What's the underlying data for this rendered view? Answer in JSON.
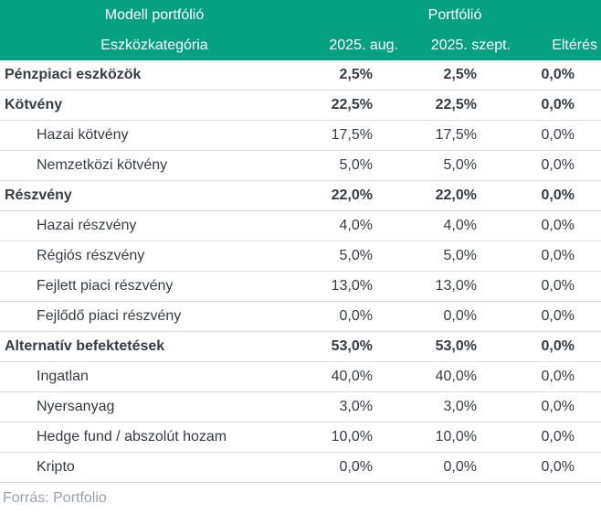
{
  "accent_color": "#06a181",
  "text_color": "#353c44",
  "divider_color": "#d9dbdd",
  "table": {
    "header": {
      "group_left": "Modell portfólió",
      "group_right": "Portfólió"
    },
    "columns": [
      "Eszközkategória",
      "2025. aug.",
      "2025. szept.",
      "Eltérés"
    ],
    "rows": [
      {
        "label": "Pénzpiaci eszközök",
        "aug": "2,5%",
        "sept": "2,5%",
        "diff": "0,0%",
        "bold": true,
        "indent": false
      },
      {
        "label": "Kötvény",
        "aug": "22,5%",
        "sept": "22,5%",
        "diff": "0,0%",
        "bold": true,
        "indent": false
      },
      {
        "label": "Hazai kötvény",
        "aug": "17,5%",
        "sept": "17,5%",
        "diff": "0,0%",
        "bold": false,
        "indent": true
      },
      {
        "label": "Nemzetközi kötvény",
        "aug": "5,0%",
        "sept": "5,0%",
        "diff": "0,0%",
        "bold": false,
        "indent": true
      },
      {
        "label": "Részvény",
        "aug": "22,0%",
        "sept": "22,0%",
        "diff": "0,0%",
        "bold": true,
        "indent": false
      },
      {
        "label": "Hazai részvény",
        "aug": "4,0%",
        "sept": "4,0%",
        "diff": "0,0%",
        "bold": false,
        "indent": true
      },
      {
        "label": "Régiós részvény",
        "aug": "5,0%",
        "sept": "5,0%",
        "diff": "0,0%",
        "bold": false,
        "indent": true
      },
      {
        "label": "Fejlett piaci részvény",
        "aug": "13,0%",
        "sept": "13,0%",
        "diff": "0,0%",
        "bold": false,
        "indent": true
      },
      {
        "label": "Fejlődő piaci részvény",
        "aug": "0,0%",
        "sept": "0,0%",
        "diff": "0,0%",
        "bold": false,
        "indent": true
      },
      {
        "label": "Alternatív befektetések",
        "aug": "53,0%",
        "sept": "53,0%",
        "diff": "0,0%",
        "bold": true,
        "indent": false
      },
      {
        "label": "Ingatlan",
        "aug": "40,0%",
        "sept": "40,0%",
        "diff": "0,0%",
        "bold": false,
        "indent": true
      },
      {
        "label": "Nyersanyag",
        "aug": "3,0%",
        "sept": "3,0%",
        "diff": "0,0%",
        "bold": false,
        "indent": true
      },
      {
        "label": "Hedge fund / abszolút hozam",
        "aug": "10,0%",
        "sept": "10,0%",
        "diff": "0,0%",
        "bold": false,
        "indent": true
      },
      {
        "label": "Kripto",
        "aug": "0,0%",
        "sept": "0,0%",
        "diff": "0,0%",
        "bold": false,
        "indent": true
      }
    ]
  },
  "footer": {
    "source": "Forrás: Portfolio"
  },
  "chart_data": {
    "type": "table",
    "title": "Modell portfólió – Portfólió",
    "columns": [
      "Eszközkategória",
      "2025. aug.",
      "2025. szept.",
      "Eltérés"
    ],
    "rows": [
      [
        "Pénzpiaci eszközök",
        2.5,
        2.5,
        0.0
      ],
      [
        "Kötvény",
        22.5,
        22.5,
        0.0
      ],
      [
        "Hazai kötvény",
        17.5,
        17.5,
        0.0
      ],
      [
        "Nemzetközi kötvény",
        5.0,
        5.0,
        0.0
      ],
      [
        "Részvény",
        22.0,
        22.0,
        0.0
      ],
      [
        "Hazai részvény",
        4.0,
        4.0,
        0.0
      ],
      [
        "Régiós részvény",
        5.0,
        5.0,
        0.0
      ],
      [
        "Fejlett piaci részvény",
        13.0,
        13.0,
        0.0
      ],
      [
        "Fejlődő piaci részvény",
        0.0,
        0.0,
        0.0
      ],
      [
        "Alternatív befektetések",
        53.0,
        53.0,
        0.0
      ],
      [
        "Ingatlan",
        40.0,
        40.0,
        0.0
      ],
      [
        "Nyersanyag",
        3.0,
        3.0,
        0.0
      ],
      [
        "Hedge fund / abszolút hozam",
        10.0,
        10.0,
        0.0
      ],
      [
        "Kripto",
        0.0,
        0.0,
        0.0
      ]
    ],
    "units": "%",
    "notes": "Values shown with Hungarian decimal commas; category rows are bold subtotals of indented sub-rows.",
    "source": "Forrás: Portfolio"
  }
}
